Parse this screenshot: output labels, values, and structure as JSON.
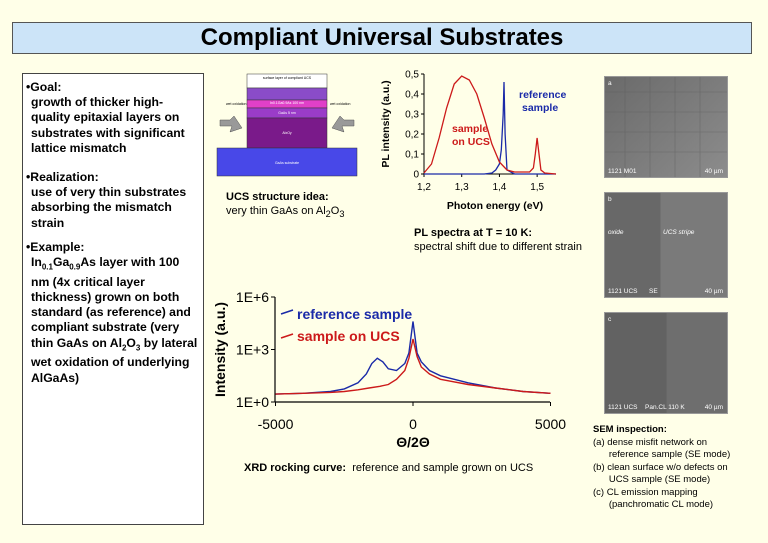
{
  "title": "Compliant Universal Substrates",
  "left": {
    "goal_head": "Goal:",
    "goal_body": "growth of thicker high-quality epitaxial layers on substrates with significant lattice mismatch",
    "real_head": "Realization:",
    "real_body": "use of very thin substrates absorbing the mismatch strain",
    "ex_head": "Example:",
    "ex_in": "In",
    "ex_in_sub": "0.1",
    "ex_ga": "Ga",
    "ex_ga_sub": "0.9",
    "ex_text1": "As layer with 100 nm (4x critical layer thickness) grown on both standard (as reference) and compliant substrate (very thin GaAs on Al",
    "ex_al_sub": "2",
    "ex_o": "O",
    "ex_o_sub": "3",
    "ex_text2": "by lateral wet oxidation of underlying AlGaAs)"
  },
  "ucs": {
    "caption_bold": "UCS structure idea:",
    "caption_text": "very thin GaAs on Al",
    "sub1": "2",
    "o": "O",
    "sub2": "3",
    "layer_labels": [
      "surface layer of compliant UCS",
      "In0.1Ga0.9As 100 nm",
      "GaAs 5 nm",
      "AlxOy",
      "GaAs substrate"
    ],
    "side_left": "wet oxidation",
    "side_right": "wet oxidation"
  },
  "pl": {
    "caption_bold": "PL spectra at T = 10 K:",
    "caption_text": "spectral shift due to different strain",
    "label_reference": "reference\nsample",
    "label_sample": "sample\non UCS",
    "colors": {
      "reference": "#1a2aa8",
      "sample": "#cc1a1a"
    }
  },
  "xrd": {
    "caption_bold": "XRD rocking curve:",
    "caption_text": "reference and sample grown on UCS",
    "legend_reference": "reference sample",
    "legend_sample": "sample on UCS"
  },
  "sem": {
    "panel_a": {
      "letter": "a",
      "id": "1121 M01",
      "scale": "40 µm"
    },
    "panel_b": {
      "letter": "b",
      "oxide": "oxide",
      "stripe": "UCS stripe",
      "id": "1121 UCS",
      "mode": "SE",
      "scale": "40 µm"
    },
    "panel_c": {
      "letter": "c",
      "id": "1121 UCS",
      "mode": "Pan.CL 110 K",
      "scale": "40 µm"
    },
    "heading": "SEM inspection:",
    "items": [
      "(a) dense misfit network on",
      "      reference sample (SE mode)",
      "(b) clean surface w/o defects on",
      "      UCS sample (SE mode)",
      "(c) CL emission mapping",
      "      (panchromatic CL mode)"
    ]
  },
  "chart_data": [
    {
      "type": "line",
      "title": "PL spectra at T = 10 K",
      "xlabel": "Photon energy (eV)",
      "ylabel": "PL intensity (a.u.)",
      "xlim": [
        1.2,
        1.55
      ],
      "ylim": [
        0,
        0.5
      ],
      "xticks": [
        "1,2",
        "1,3",
        "1,4",
        "1,5"
      ],
      "yticks": [
        "0",
        "0,1",
        "0,2",
        "0,3",
        "0,4",
        "0,5"
      ],
      "series": [
        {
          "name": "reference sample",
          "x": [
            1.2,
            1.36,
            1.38,
            1.39,
            1.4,
            1.405,
            1.41,
            1.412,
            1.415,
            1.42,
            1.44,
            1.55
          ],
          "y": [
            0,
            0,
            0.005,
            0.02,
            0.05,
            0.12,
            0.3,
            0.46,
            0.2,
            0.02,
            0.0,
            0.0
          ]
        },
        {
          "name": "sample on UCS",
          "x": [
            1.2,
            1.22,
            1.24,
            1.26,
            1.28,
            1.3,
            1.32,
            1.34,
            1.36,
            1.38,
            1.4,
            1.42,
            1.44,
            1.46,
            1.48,
            1.49,
            1.495,
            1.5,
            1.505,
            1.51,
            1.52,
            1.55
          ],
          "y": [
            0.005,
            0.05,
            0.18,
            0.33,
            0.45,
            0.49,
            0.47,
            0.4,
            0.28,
            0.15,
            0.06,
            0.02,
            0.01,
            0.01,
            0.01,
            0.03,
            0.1,
            0.18,
            0.1,
            0.02,
            0.005,
            0.0
          ]
        }
      ]
    },
    {
      "type": "line",
      "title": "XRD rocking curve",
      "xlabel": "Θ/2Θ",
      "ylabel": "Intensity (a.u.)",
      "xlim": [
        -5000,
        5000
      ],
      "ylim_log10": [
        0,
        6
      ],
      "xticks": [
        "-5000",
        "0",
        "5000"
      ],
      "yticks": [
        "1E+0",
        "1E+3",
        "1E+6"
      ],
      "series": [
        {
          "name": "reference sample",
          "x": [
            -5200,
            -4000,
            -3000,
            -2500,
            -2000,
            -1700,
            -1500,
            -1300,
            -1100,
            -900,
            -600,
            -300,
            -150,
            0,
            150,
            300,
            600,
            1000,
            2000,
            3000,
            4000,
            5200
          ],
          "log_y": [
            0.45,
            0.5,
            0.6,
            0.75,
            1.1,
            1.6,
            2.2,
            2.5,
            2.3,
            1.9,
            1.8,
            2.2,
            2.8,
            4.6,
            2.8,
            2.3,
            1.8,
            1.5,
            1.1,
            0.8,
            0.6,
            0.5
          ]
        },
        {
          "name": "sample on UCS",
          "x": [
            -5200,
            -4000,
            -3000,
            -2500,
            -2000,
            -1600,
            -1200,
            -900,
            -600,
            -300,
            -150,
            0,
            150,
            300,
            600,
            1000,
            2000,
            3000,
            4000,
            5200
          ],
          "log_y": [
            0.45,
            0.5,
            0.55,
            0.6,
            0.7,
            0.8,
            0.9,
            1.0,
            1.3,
            1.8,
            2.5,
            3.6,
            2.6,
            2.0,
            1.6,
            1.3,
            1.0,
            0.8,
            0.6,
            0.5
          ]
        }
      ]
    }
  ]
}
